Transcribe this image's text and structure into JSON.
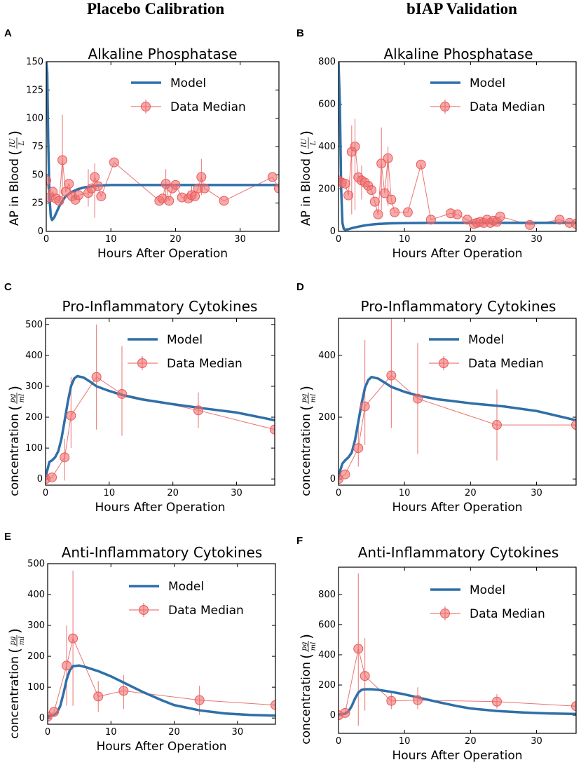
{
  "column_titles": {
    "left": "Placebo Calibration",
    "right": "bIAP Validation"
  },
  "legend": {
    "model": "Model",
    "data": "Data Median"
  },
  "colors": {
    "model": "#2f6fa8",
    "data": "#f07070",
    "data_line": "#e85a5a"
  },
  "chart_data": [
    {
      "panel": "A",
      "type": "line",
      "title": "Alkaline Phosphatase",
      "xlabel": "Hours After Operation",
      "ylabel": "AP in Blood",
      "units": {
        "num": "IU",
        "den": "L"
      },
      "xlim": [
        0,
        36
      ],
      "ylim": [
        0,
        150
      ],
      "xticks": [
        0,
        10,
        20,
        30
      ],
      "yticks": [
        0,
        25,
        50,
        75,
        100,
        125,
        150
      ],
      "model": {
        "x": [
          0,
          0.15,
          0.3,
          0.5,
          0.7,
          0.9,
          1.2,
          1.6,
          2,
          2.5,
          3,
          4,
          5,
          6,
          8,
          10,
          15,
          20,
          25,
          30,
          36
        ],
        "y": [
          150,
          140,
          80,
          30,
          13,
          10,
          12,
          17,
          22,
          27,
          31,
          35,
          37.5,
          39,
          40.5,
          41,
          41,
          41,
          41,
          41,
          41
        ]
      },
      "data": {
        "x": [
          0,
          0.5,
          1,
          1.5,
          2,
          2.5,
          3,
          3.5,
          4,
          4.5,
          5,
          6.5,
          7,
          7.5,
          8,
          8.5,
          10.5,
          17.5,
          18,
          18.5,
          19,
          19.5,
          20,
          21,
          22,
          22.5,
          23,
          23.5,
          24,
          24.5,
          27.5,
          35,
          36
        ],
        "y": [
          45,
          30,
          35,
          29,
          27,
          63,
          35,
          42,
          31,
          28,
          32,
          34,
          38,
          48,
          40,
          31,
          61,
          27,
          29,
          42,
          27,
          38,
          41,
          30,
          29,
          32,
          31,
          38,
          48,
          38,
          27,
          48,
          38
        ],
        "err_lo": [
          null,
          null,
          null,
          null,
          null,
          30,
          null,
          null,
          null,
          null,
          null,
          22,
          null,
          12,
          null,
          null,
          null,
          null,
          null,
          28,
          null,
          null,
          null,
          null,
          null,
          26,
          null,
          null,
          32,
          null,
          null,
          null,
          null
        ],
        "err_hi": [
          null,
          null,
          null,
          null,
          null,
          103,
          null,
          null,
          null,
          null,
          null,
          55,
          null,
          60,
          null,
          null,
          null,
          null,
          null,
          55,
          null,
          null,
          null,
          null,
          null,
          40,
          null,
          null,
          64,
          null,
          null,
          null,
          null
        ]
      }
    },
    {
      "panel": "B",
      "type": "line",
      "title": "Alkaline Phosphatase",
      "xlabel": "Hours After Operation",
      "ylabel": "AP in Blood",
      "units": {
        "num": "IU",
        "den": "L"
      },
      "xlim": [
        0,
        36
      ],
      "ylim": [
        0,
        800
      ],
      "xticks": [
        0,
        10,
        20,
        30
      ],
      "yticks": [
        0,
        200,
        400,
        600,
        800
      ],
      "model": {
        "x": [
          0,
          0.2,
          0.4,
          0.6,
          0.8,
          1,
          1.5,
          2,
          3,
          4,
          5,
          6,
          8,
          10,
          15,
          20,
          25,
          30,
          36
        ],
        "y": [
          800,
          600,
          200,
          40,
          12,
          8,
          10,
          15,
          22,
          28,
          32,
          35,
          38,
          39,
          40,
          40,
          40,
          40,
          40
        ]
      },
      "data": {
        "x": [
          0,
          0.5,
          1,
          1.5,
          2,
          2.5,
          3,
          3.5,
          4,
          4.5,
          5,
          5.5,
          6,
          6.5,
          7,
          7.5,
          8,
          8.5,
          10.5,
          12.5,
          14,
          17,
          18,
          19.5,
          20.5,
          21,
          21.5,
          22,
          22.5,
          23,
          23.5,
          24,
          24.5,
          29,
          33.5,
          35,
          36
        ],
        "y": [
          240,
          230,
          225,
          170,
          375,
          400,
          255,
          240,
          230,
          215,
          195,
          140,
          80,
          320,
          180,
          345,
          150,
          90,
          90,
          315,
          55,
          85,
          80,
          55,
          35,
          40,
          45,
          40,
          55,
          40,
          50,
          45,
          70,
          30,
          55,
          40,
          35
        ],
        "err_lo": [
          null,
          null,
          null,
          null,
          80,
          100,
          null,
          150,
          null,
          null,
          null,
          null,
          null,
          100,
          null,
          120,
          null,
          null,
          null,
          null,
          null,
          null,
          null,
          null,
          null,
          null,
          null,
          null,
          null,
          null,
          null,
          null,
          null,
          null,
          null,
          null,
          null
        ],
        "err_hi": [
          null,
          null,
          null,
          null,
          500,
          530,
          null,
          310,
          null,
          null,
          null,
          null,
          null,
          490,
          null,
          400,
          null,
          null,
          null,
          null,
          null,
          null,
          null,
          null,
          null,
          null,
          null,
          null,
          null,
          null,
          null,
          null,
          null,
          null,
          null,
          null,
          null
        ]
      }
    },
    {
      "panel": "C",
      "type": "line",
      "title": "Pro-Inflammatory Cytokines",
      "xlabel": "Hours After Operation",
      "ylabel": "concentration",
      "units": {
        "num": "pg",
        "den": "ml"
      },
      "xlim": [
        0,
        36
      ],
      "ylim": [
        -20,
        520
      ],
      "xticks": [
        0,
        10,
        20,
        30
      ],
      "yticks": [
        0,
        100,
        200,
        300,
        400,
        500
      ],
      "model": {
        "x": [
          0,
          0.3,
          0.6,
          1,
          1.5,
          2,
          2.5,
          3,
          3.5,
          4,
          4.5,
          5,
          6,
          7,
          8,
          10,
          12,
          15,
          20,
          25,
          30,
          36
        ],
        "y": [
          5,
          30,
          55,
          60,
          70,
          90,
          130,
          190,
          250,
          300,
          325,
          333,
          328,
          315,
          300,
          285,
          272,
          258,
          242,
          228,
          215,
          190
        ]
      },
      "data": {
        "x": [
          0,
          1,
          3,
          4,
          8,
          12,
          24,
          36
        ],
        "y": [
          0,
          5,
          70,
          205,
          330,
          275,
          222,
          160
        ],
        "err_lo": [
          null,
          null,
          -5,
          100,
          160,
          140,
          165,
          null
        ],
        "err_hi": [
          null,
          null,
          130,
          330,
          500,
          430,
          280,
          null
        ]
      }
    },
    {
      "panel": "D",
      "type": "line",
      "title": "Pro-Inflammatory Cytokines",
      "xlabel": "Hours After Operation",
      "ylabel": "concentration",
      "units": {
        "num": "pg",
        "den": "ml"
      },
      "xlim": [
        0,
        36
      ],
      "ylim": [
        -20,
        520
      ],
      "xticks": [
        0,
        10,
        20,
        30
      ],
      "yticks": [
        0,
        200,
        400
      ],
      "model": {
        "x": [
          0,
          0.3,
          0.6,
          1,
          1.5,
          2,
          2.5,
          3,
          3.5,
          4,
          4.5,
          5,
          6,
          7,
          8,
          10,
          12,
          15,
          20,
          25,
          30,
          36
        ],
        "y": [
          5,
          30,
          50,
          60,
          70,
          85,
          125,
          185,
          245,
          295,
          320,
          330,
          325,
          312,
          298,
          282,
          270,
          258,
          245,
          235,
          220,
          190
        ]
      },
      "data": {
        "x": [
          0,
          1,
          3,
          4,
          8,
          12,
          24,
          36
        ],
        "y": [
          0,
          15,
          100,
          235,
          335,
          260,
          175,
          175
        ],
        "err_lo": [
          null,
          null,
          40,
          110,
          165,
          80,
          60,
          null
        ],
        "err_hi": [
          null,
          null,
          170,
          450,
          545,
          440,
          290,
          null
        ]
      }
    },
    {
      "panel": "E",
      "type": "line",
      "title": "Anti-Inflammatory Cytokines",
      "xlabel": "Hours After Operation",
      "ylabel": "concentration",
      "units": {
        "num": "pg",
        "den": "ml"
      },
      "xlim": [
        0,
        36
      ],
      "ylim": [
        -20,
        500
      ],
      "xticks": [
        0,
        10,
        20,
        30
      ],
      "yticks": [
        0,
        100,
        200,
        300,
        400,
        500
      ],
      "model": {
        "x": [
          0,
          1,
          1.5,
          2,
          2.5,
          3,
          3.5,
          4,
          5,
          6,
          8,
          10,
          12,
          15,
          18,
          20,
          24,
          28,
          32,
          36
        ],
        "y": [
          5,
          10,
          18,
          40,
          80,
          125,
          155,
          168,
          170,
          165,
          152,
          135,
          115,
          85,
          58,
          42,
          25,
          15,
          10,
          8
        ]
      },
      "data": {
        "x": [
          0,
          1,
          3,
          4,
          8,
          12,
          24,
          36
        ],
        "y": [
          5,
          20,
          170,
          258,
          70,
          88,
          58,
          42
        ],
        "err_lo": [
          null,
          null,
          40,
          40,
          20,
          30,
          10,
          null
        ],
        "err_hi": [
          null,
          null,
          300,
          478,
          120,
          140,
          105,
          null
        ]
      }
    },
    {
      "panel": "F",
      "type": "line",
      "title": "Anti-Inflammatory Cytokines",
      "xlabel": "Hours After Operation",
      "ylabel": "concentration",
      "units": {
        "num": "pg",
        "den": "ml"
      },
      "xlim": [
        0,
        36
      ],
      "ylim": [
        -120,
        980
      ],
      "xticks": [
        0,
        10,
        20,
        30
      ],
      "yticks": [
        0,
        200,
        400,
        600,
        800
      ],
      "model": {
        "x": [
          0,
          1,
          1.5,
          2,
          2.5,
          3,
          3.5,
          4,
          5,
          6,
          8,
          10,
          12,
          15,
          18,
          20,
          24,
          28,
          32,
          36
        ],
        "y": [
          5,
          10,
          25,
          60,
          110,
          150,
          168,
          172,
          172,
          168,
          155,
          138,
          118,
          88,
          60,
          45,
          28,
          18,
          12,
          8
        ]
      },
      "data": {
        "x": [
          0,
          1,
          3,
          4,
          8,
          12,
          24,
          36
        ],
        "y": [
          0,
          15,
          440,
          260,
          95,
          100,
          90,
          60
        ],
        "err_lo": [
          null,
          null,
          -70,
          30,
          40,
          40,
          45,
          null
        ],
        "err_hi": [
          null,
          null,
          940,
          510,
          150,
          185,
          140,
          null
        ]
      }
    }
  ]
}
